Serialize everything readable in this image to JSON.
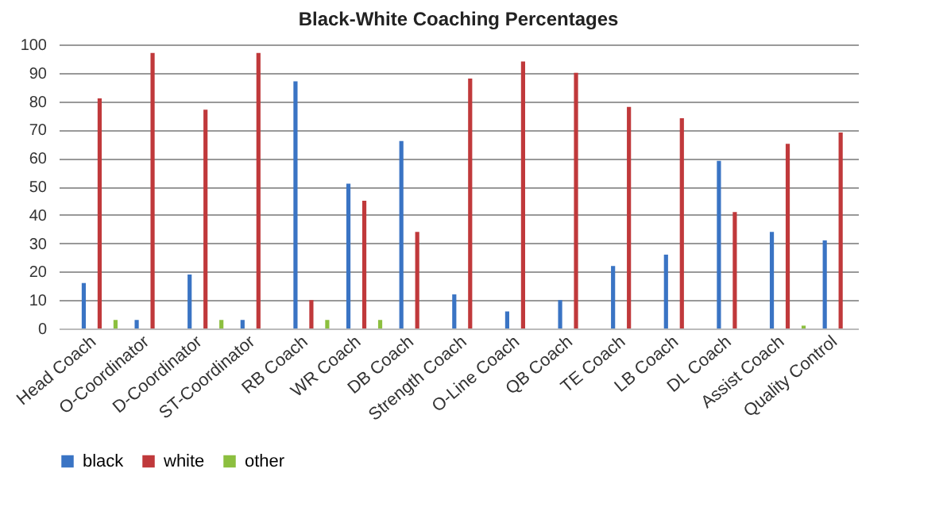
{
  "chart_data": {
    "type": "bar",
    "title": "Black-White Coaching Percentages",
    "categories": [
      "Head Coach",
      "O-Coordinator",
      "D-Coordinator",
      "ST-Coordinator",
      "RB Coach",
      "WR Coach",
      "DB Coach",
      "Strength Coach",
      "O-Line Coach",
      "QB Coach",
      "TE Coach",
      "LB Coach",
      "DL Coach",
      "Assist Coach",
      "Quality Control"
    ],
    "series": [
      {
        "name": "black",
        "color": "#3a74c4",
        "values": [
          16,
          3,
          19,
          3,
          87,
          51,
          66,
          12,
          6,
          10,
          22,
          26,
          59,
          34,
          31
        ]
      },
      {
        "name": "white",
        "color": "#c0393b",
        "values": [
          81,
          97,
          77,
          97,
          10,
          45,
          34,
          88,
          94,
          90,
          78,
          74,
          41,
          65,
          69
        ]
      },
      {
        "name": "other",
        "color": "#8cbf3f",
        "values": [
          3,
          null,
          3,
          null,
          3,
          3,
          null,
          null,
          null,
          null,
          null,
          null,
          null,
          1,
          null
        ]
      }
    ],
    "ylim": [
      0,
      100
    ],
    "yticks": [
      0,
      10,
      20,
      30,
      40,
      50,
      60,
      70,
      80,
      90,
      100
    ],
    "grid": "y",
    "legend": "bottom"
  }
}
